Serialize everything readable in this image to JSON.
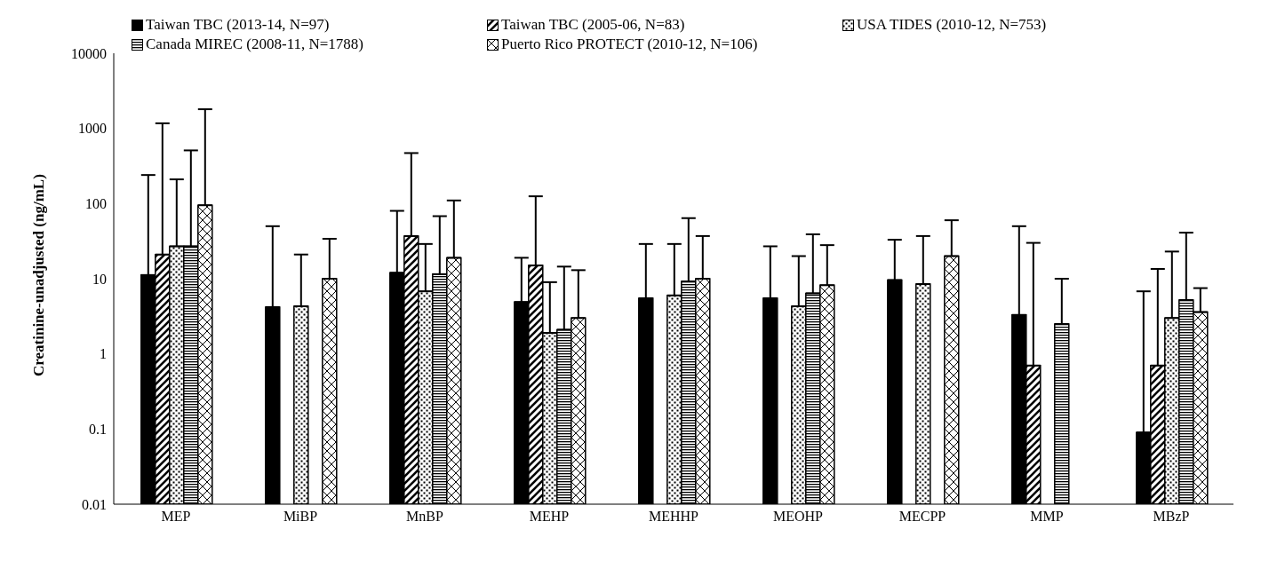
{
  "chart_data": {
    "type": "bar",
    "ylabel": "Creatinine-unadjusted (ng/mL)",
    "log": true,
    "ylim": [
      0.01,
      10000
    ],
    "yticks": [
      0.01,
      0.1,
      1,
      10,
      100,
      1000,
      10000
    ],
    "grid": false,
    "legend": "top",
    "categories": [
      "MEP",
      "MiBP",
      "MnBP",
      "MEHP",
      "MEHHP",
      "MEOHP",
      "MECPP",
      "MMP",
      "MBzP"
    ],
    "series": [
      {
        "name": "Taiwan TBC (2013-14, N=97)",
        "color": "#000000",
        "values": [
          11.2,
          4.2,
          12,
          4.9,
          5.5,
          5.5,
          9.6,
          3.3,
          0.09
        ],
        "errors": [
          [
            11.2,
            240
          ],
          [
            4.2,
            50
          ],
          [
            12,
            80
          ],
          [
            4.9,
            19
          ],
          [
            5.5,
            29
          ],
          [
            5.5,
            27
          ],
          [
            9.6,
            33
          ],
          [
            3.3,
            50
          ],
          [
            0.09,
            6.8
          ]
        ]
      },
      {
        "name": "Taiwan TBC (2005-06, N=83)",
        "color": "#000000",
        "values": [
          21,
          null,
          37,
          15,
          null,
          null,
          null,
          0.7,
          0.7
        ],
        "errors": [
          [
            21,
            1170
          ],
          null,
          [
            37,
            470
          ],
          [
            15,
            125
          ],
          null,
          null,
          null,
          [
            0.7,
            30
          ],
          [
            0.7,
            13.5
          ]
        ]
      },
      {
        "name": "USA TIDES (2010-12, N=753)",
        "color": "#000000",
        "values": [
          27,
          4.3,
          6.8,
          1.9,
          6,
          4.3,
          8.5,
          null,
          3
        ],
        "errors": [
          [
            27,
            210
          ],
          [
            4.3,
            21
          ],
          [
            6.8,
            29
          ],
          [
            1.9,
            9
          ],
          [
            6,
            29
          ],
          [
            4.3,
            20
          ],
          [
            8.5,
            37
          ],
          null,
          [
            3,
            23
          ]
        ]
      },
      {
        "name": "Canada MIREC (2008-11, N=1788)",
        "color": "#000000",
        "values": [
          27,
          null,
          11.5,
          2.1,
          9.2,
          6.4,
          null,
          2.5,
          5.2
        ],
        "errors": [
          [
            27,
            510
          ],
          null,
          [
            11.5,
            68
          ],
          [
            2.1,
            14.5
          ],
          [
            9.2,
            64
          ],
          [
            6.4,
            39
          ],
          null,
          [
            2.5,
            10
          ],
          [
            5.2,
            41
          ]
        ]
      },
      {
        "name": "Puerto Rico PROTECT (2010-12, N=106)",
        "color": "#000000",
        "values": [
          95,
          10,
          19,
          3,
          10,
          8.2,
          20,
          null,
          3.6
        ],
        "errors": [
          [
            95,
            1800
          ],
          [
            10,
            34
          ],
          [
            19,
            110
          ],
          [
            3,
            13
          ],
          [
            10,
            37
          ],
          [
            8.2,
            28
          ],
          [
            20,
            60
          ],
          null,
          [
            3.6,
            7.5
          ]
        ]
      }
    ]
  }
}
